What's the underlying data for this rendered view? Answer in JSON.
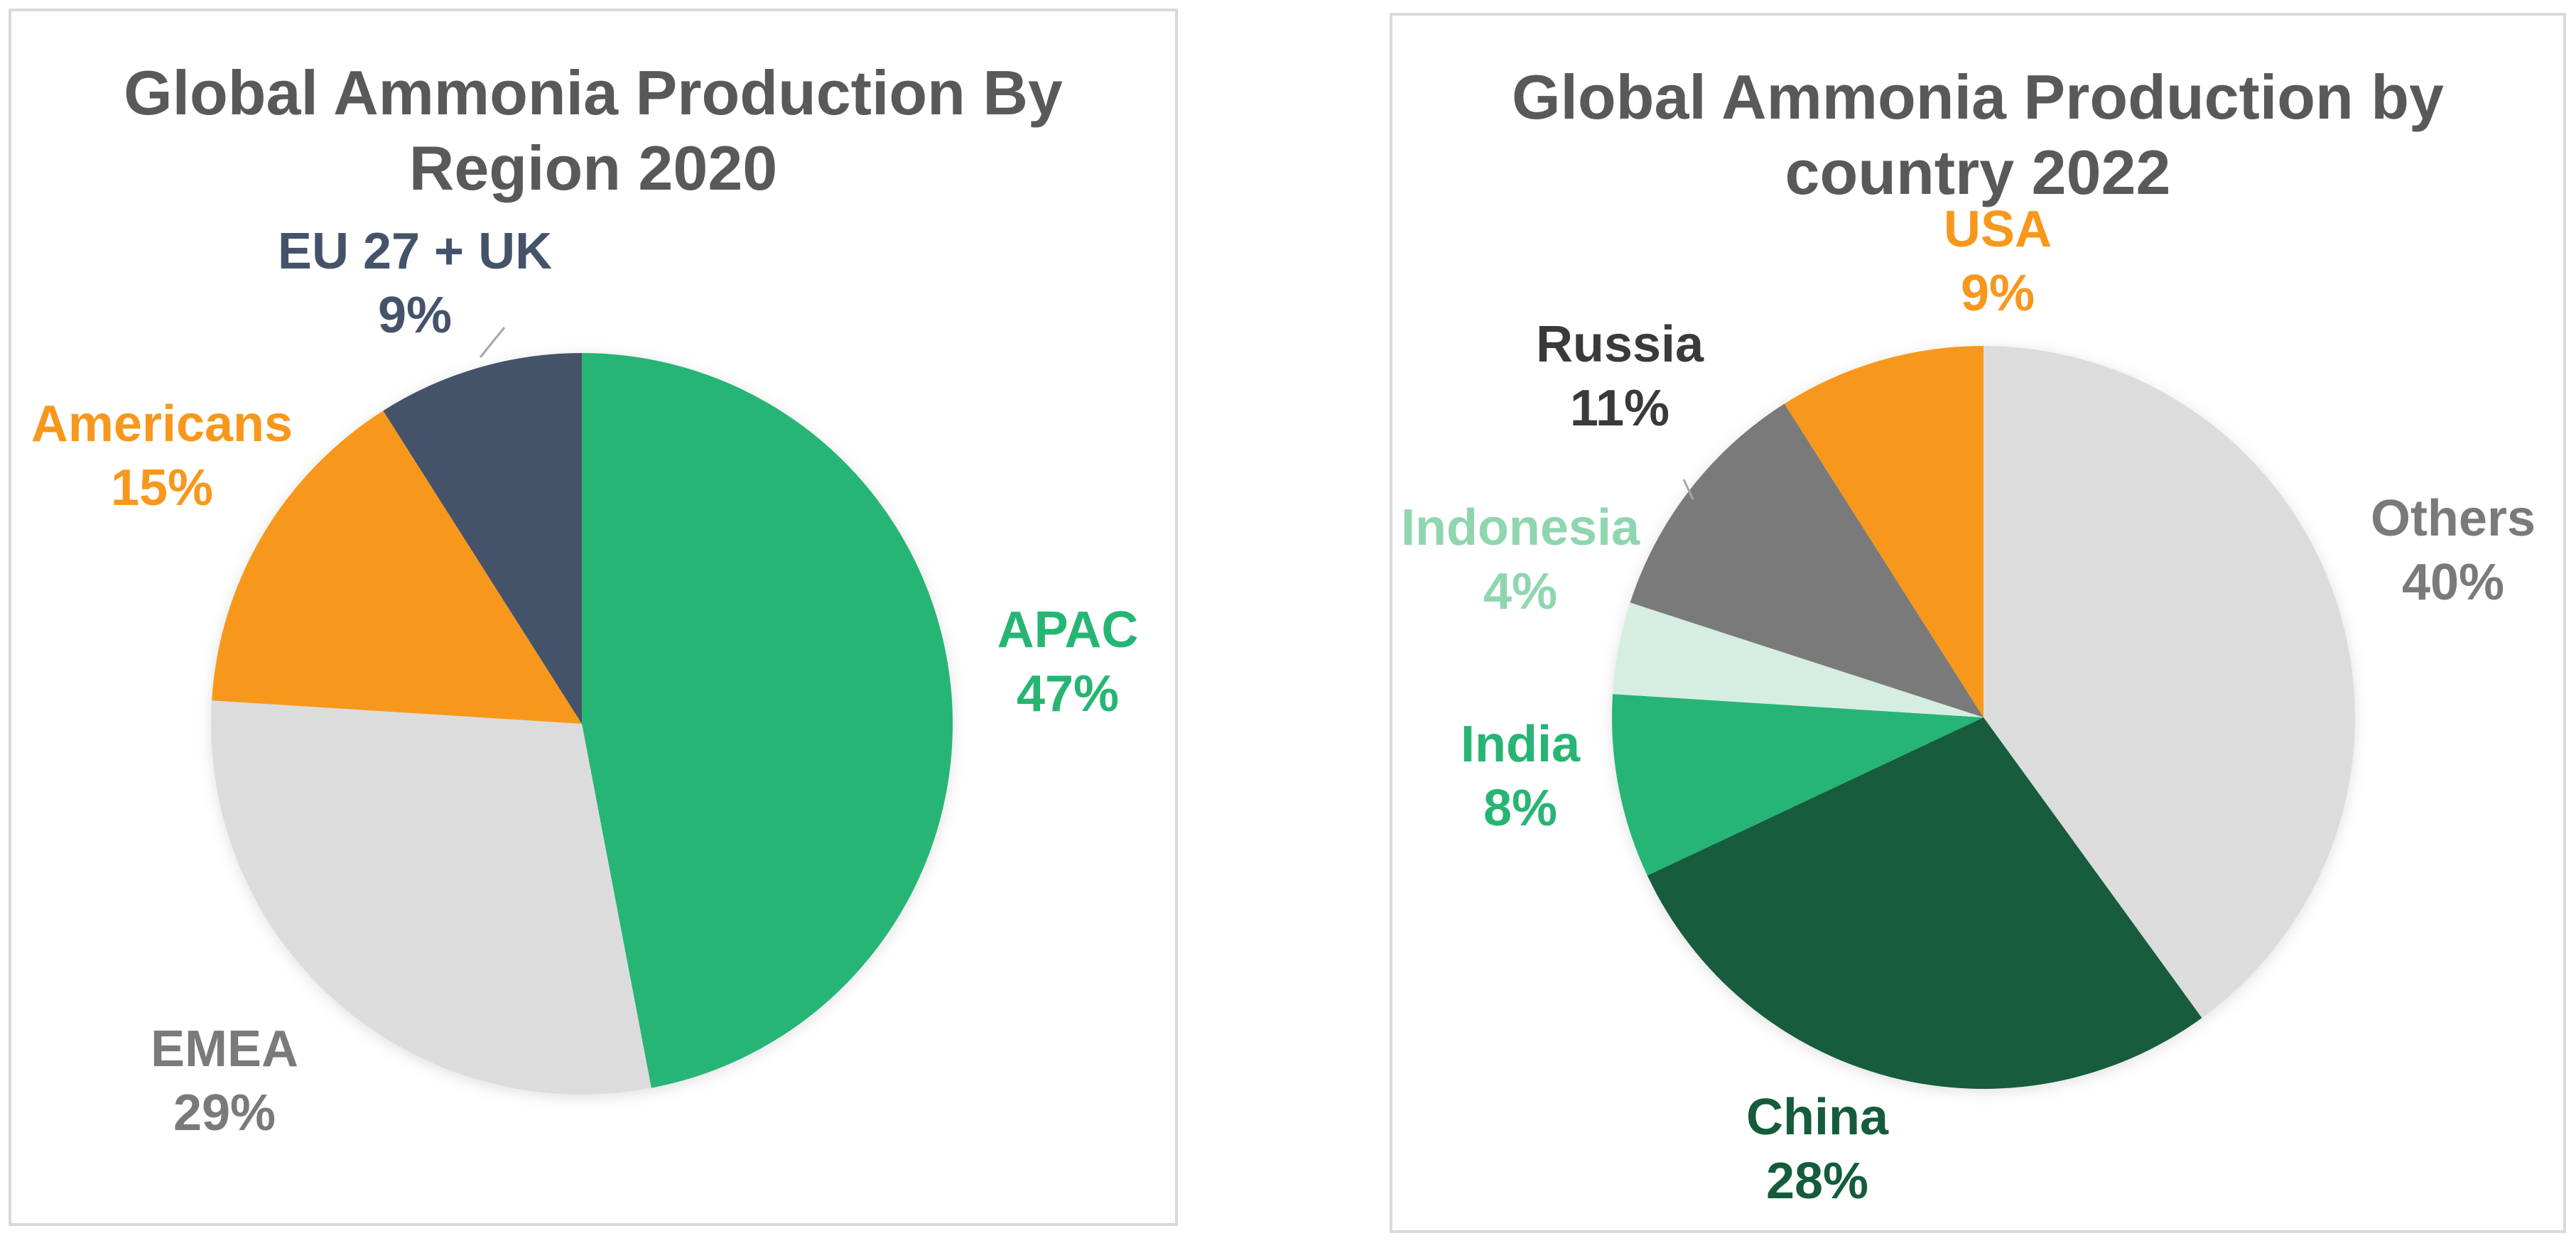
{
  "colors": {
    "border": "#d9d9d9",
    "title": "#595959",
    "green": "#27b574",
    "dark_green": "#145c3c",
    "light_green": "#d6ede1",
    "light_green_text": "#8fd6b0",
    "light_gray": "#dcdcdc",
    "mid_gray": "#7a7a7a",
    "dark_gray": "#3a3a3a",
    "slate": "#45536a",
    "orange": "#f7981d"
  },
  "chart_data": [
    {
      "type": "pie",
      "title": "Global Ammonia Production By\nRegion 2020",
      "slices": [
        {
          "label": "APAC",
          "value": 47,
          "value_label": "47%",
          "color": "#27b574",
          "text_color": "#27b574"
        },
        {
          "label": "EMEA",
          "value": 29,
          "value_label": "29%",
          "color": "#dcdcdc",
          "text_color": "#7a7a7a"
        },
        {
          "label": "Americans",
          "value": 15,
          "value_label": "15%",
          "color": "#f7981d",
          "text_color": "#f7981d"
        },
        {
          "label": "EU 27 + UK",
          "value": 9,
          "value_label": "9%",
          "color": "#45536a",
          "text_color": "#45536a"
        }
      ]
    },
    {
      "type": "pie",
      "title": "Global Ammonia Production by\ncountry 2022",
      "slices": [
        {
          "label": "Others",
          "value": 40,
          "value_label": "40%",
          "color": "#dcdcdc",
          "text_color": "#7a7a7a"
        },
        {
          "label": "China",
          "value": 28,
          "value_label": "28%",
          "color": "#145c3c",
          "text_color": "#145c3c"
        },
        {
          "label": "India",
          "value": 8,
          "value_label": "8%",
          "color": "#27b574",
          "text_color": "#27b574"
        },
        {
          "label": "Indonesia",
          "value": 4,
          "value_label": "4%",
          "color": "#d6ede1",
          "text_color": "#8fd6b0"
        },
        {
          "label": "Russia",
          "value": 11,
          "value_label": "11%",
          "color": "#7a7a7a",
          "text_color": "#3a3a3a"
        },
        {
          "label": "USA",
          "value": 9,
          "value_label": "9%",
          "color": "#f7981d",
          "text_color": "#f7981d"
        }
      ]
    }
  ]
}
